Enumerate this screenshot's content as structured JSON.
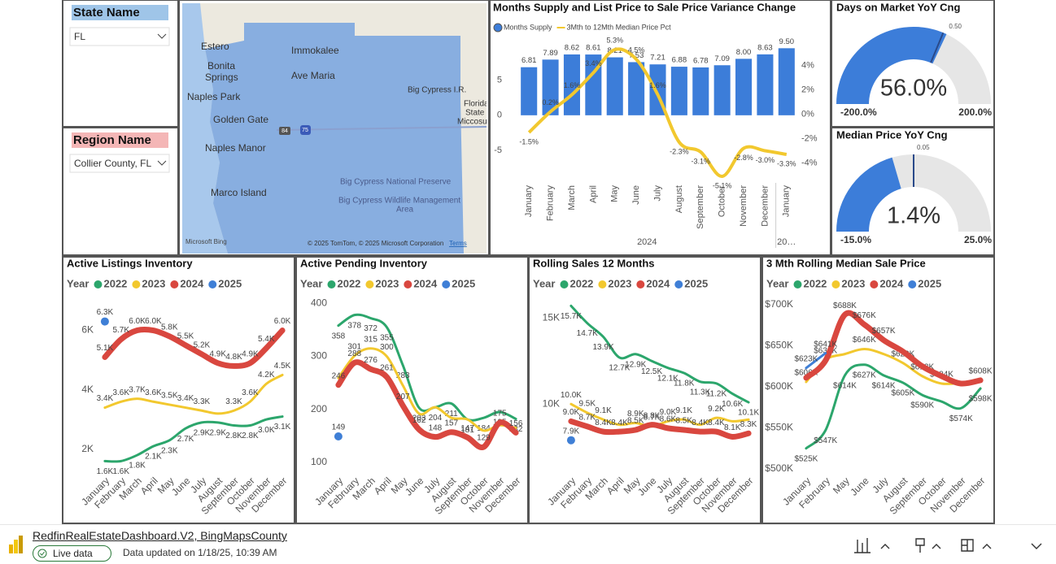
{
  "slicers": [
    {
      "title": "State Name",
      "value": "FL"
    },
    {
      "title": "Region Name",
      "value": "Collier County, FL"
    }
  ],
  "map": {
    "labels": [
      "Estero",
      "Bonita",
      "Springs",
      "Immokalee",
      "Ave Maria",
      "Naples Park",
      "Golden Gate",
      "Naples Manor",
      "Marco Island",
      "Big Cypress I.R.",
      "Florida",
      "State",
      "Miccosul",
      "Big Cypress National Preserve",
      "Big Cypress Wildlife Management",
      "Area"
    ],
    "shields": [
      "84",
      "75"
    ],
    "brand": "Microsoft Bing",
    "copyright": "© 2025 TomTom, © 2025 Microsoft Corporation",
    "terms": "Terms"
  },
  "chart_data": [
    {
      "type": "combo",
      "title": "Months Supply and List Price to Sale Price Variance Change",
      "categories": [
        "January",
        "February",
        "March",
        "April",
        "May",
        "June",
        "July",
        "August",
        "September",
        "October",
        "November",
        "December",
        "January"
      ],
      "groups": [
        "2024",
        "20…"
      ],
      "series": [
        {
          "name": "Months Supply",
          "type": "bar",
          "color": "#3c7dd9",
          "values": [
            6.81,
            7.89,
            8.62,
            8.61,
            8.21,
            7.53,
            7.21,
            6.88,
            6.78,
            7.09,
            8.0,
            8.63,
            9.5
          ],
          "value_labels": [
            "6.81",
            "7.89",
            "8.62",
            "8.61",
            "8.21",
            "7.53",
            "7.21",
            "6.88",
            "6.78",
            "7.09",
            "8.00",
            "8.63",
            "9.50"
          ]
        },
        {
          "name": "3Mth to 12Mth Median Price Pct",
          "type": "line",
          "axis": "y2",
          "color": "#f2c82e",
          "values": [
            -1.5,
            0.2,
            1.6,
            3.4,
            5.3,
            4.5,
            1.6,
            -2.3,
            -3.1,
            -5.1,
            -2.8,
            -3.0,
            -3.3
          ],
          "value_labels": [
            "-1.5%",
            "0.2%",
            "1.6%",
            "3.4%",
            "5.3%",
            "4.5%",
            "1.6%",
            "-2.3%",
            "-3.1%",
            "-5.1%",
            "-2.8%",
            "-3.0%",
            "-3.3%"
          ]
        }
      ],
      "ylim": [
        -9,
        10
      ],
      "yticks": [
        -5,
        0,
        5
      ],
      "y2lim": [
        -5.3,
        5.7
      ],
      "y2ticks": [
        {
          "value": 4,
          "label": "4%"
        },
        {
          "value": 2,
          "label": "2%"
        },
        {
          "value": 0,
          "label": "0%"
        },
        {
          "value": -2,
          "label": "-2%"
        },
        {
          "value": -4,
          "label": "-4%"
        }
      ]
    },
    {
      "type": "gauge",
      "title": "Days on Market YoY Cng",
      "values": [
        56.0
      ],
      "value_labels": [
        "56.0%"
      ],
      "ylim": [
        -200,
        200
      ],
      "yticks": [
        {
          "value": -200,
          "label": "-200.0%"
        },
        {
          "value": 200,
          "label": "200.0%"
        }
      ],
      "target": {
        "value": 50,
        "label": "0.50"
      },
      "color": "#3c7dd9"
    },
    {
      "type": "gauge",
      "title": "Median Price YoY Cng",
      "values": [
        1.4
      ],
      "value_labels": [
        "1.4%"
      ],
      "ylim": [
        -15,
        25
      ],
      "yticks": [
        {
          "value": -15,
          "label": "-15.0%"
        },
        {
          "value": 25,
          "label": "25.0%"
        }
      ],
      "target": {
        "value": 5,
        "label": "0.05"
      },
      "color": "#3c7dd9"
    },
    {
      "type": "line",
      "title": "Active Listings Inventory",
      "legend_title": "Year",
      "categories": [
        "January",
        "February",
        "March",
        "April",
        "May",
        "June",
        "July",
        "August",
        "September",
        "October",
        "November",
        "December"
      ],
      "series": [
        {
          "name": "2022",
          "color": "#2ca66c",
          "values": [
            1600,
            1600,
            1800,
            2100,
            2300,
            2700,
            2900,
            2900,
            2800,
            2800,
            3000,
            3100
          ],
          "value_labels": [
            "1.6K",
            "1.6K",
            "1.8K",
            "2.1K",
            "2.3K",
            "2.7K",
            "2.9K",
            "2.9K",
            "2.8K",
            "2.8K",
            "3.0K",
            "3.1K"
          ]
        },
        {
          "name": "2023",
          "color": "#f2c82e",
          "values": [
            3400,
            3600,
            3700,
            3600,
            3500,
            3400,
            3300,
            3200,
            3300,
            3600,
            4200,
            4500
          ],
          "value_labels": [
            "3.4K",
            "3.6K",
            "3.7K",
            "3.6K",
            "3.5K",
            "3.4K",
            "3.3K",
            null,
            "3.3K",
            "3.6K",
            "4.2K",
            "4.5K"
          ]
        },
        {
          "name": "2024",
          "color": "#d9473f",
          "values": [
            5100,
            5700,
            6000,
            6000,
            5800,
            5500,
            5200,
            4900,
            4800,
            4900,
            5400,
            6000
          ],
          "value_labels": [
            "5.1K",
            "5.7K",
            "6.0K",
            "6.0K",
            "5.8K",
            "5.5K",
            "5.2K",
            "4.9K",
            "4.8K",
            "4.9K",
            "5.4K",
            "6.0K"
          ]
        },
        {
          "name": "2025",
          "color": "#3f7fd6",
          "values": [
            6300,
            null,
            null,
            null,
            null,
            null,
            null,
            null,
            null,
            null,
            null,
            null
          ],
          "value_labels": [
            "6.3K",
            null,
            null,
            null,
            null,
            null,
            null,
            null,
            null,
            null,
            null,
            null
          ]
        }
      ],
      "ylim": [
        1200,
        7000
      ],
      "yticks": [
        {
          "value": 2000,
          "label": "2K"
        },
        {
          "value": 4000,
          "label": "4K"
        },
        {
          "value": 6000,
          "label": "6K"
        }
      ]
    },
    {
      "type": "line",
      "title": "Active Pending Inventory",
      "legend_title": "Year",
      "categories": [
        "January",
        "February",
        "March",
        "April",
        "May",
        "June",
        "July",
        "August",
        "September",
        "October",
        "November",
        "December"
      ],
      "series": [
        {
          "name": "2022",
          "color": "#2ca66c",
          "values": [
            358,
            378,
            372,
            355,
            283,
            203,
            204,
            211,
            181,
            184,
            195,
            182
          ],
          "value_labels": [
            "358",
            "378",
            "372",
            "355",
            "283",
            "203",
            "204",
            "211",
            "181",
            "184",
            "195",
            "182"
          ]
        },
        {
          "name": "2023",
          "color": "#f2c82e",
          "values": [
            259,
            301,
            315,
            300,
            245,
            192,
            204,
            184,
            181,
            160,
            170,
            165
          ],
          "value_labels": [
            null,
            "301",
            "315",
            "300",
            null,
            null,
            null,
            null,
            null,
            null,
            null,
            null
          ]
        },
        {
          "name": "2024",
          "color": "#d9473f",
          "values": [
            246,
            288,
            276,
            261,
            207,
            162,
            148,
            157,
            147,
            129,
            175,
            156
          ],
          "value_labels": [
            "246",
            "288",
            "276",
            "261",
            "207",
            "162",
            "148",
            "157",
            "147",
            "129",
            "175",
            "156"
          ]
        },
        {
          "name": "2025",
          "color": "#3f7fd6",
          "values": [
            149,
            null,
            null,
            null,
            null,
            null,
            null,
            null,
            null,
            null,
            null,
            null
          ],
          "value_labels": [
            "149",
            null,
            null,
            null,
            null,
            null,
            null,
            null,
            null,
            null,
            null,
            null
          ]
        }
      ],
      "ylim": [
        80,
        405
      ],
      "yticks": [
        100,
        200,
        300,
        400
      ]
    },
    {
      "type": "line",
      "title": "Rolling Sales 12 Months",
      "legend_title": "Year",
      "categories": [
        "January",
        "February",
        "March",
        "April",
        "May",
        "June",
        "July",
        "August",
        "September",
        "October",
        "November",
        "December"
      ],
      "series": [
        {
          "name": "2022",
          "color": "#2ca66c",
          "values": [
            15700,
            14700,
            13900,
            12700,
            12900,
            12500,
            12100,
            11800,
            11300,
            11200,
            10600,
            10100
          ],
          "value_labels": [
            "15.7K",
            "14.7K",
            "13.9K",
            "12.7K",
            "12.9K",
            "12.5K",
            "12.1K",
            "11.8K",
            "11.3K",
            "11.2K",
            "10.6K",
            "10.1K"
          ]
        },
        {
          "name": "2023",
          "color": "#f2c82e",
          "values": [
            10000,
            9500,
            9100,
            8800,
            8900,
            8700,
            9000,
            9100,
            8800,
            9200,
            9000,
            9100
          ],
          "value_labels": [
            "10.0K",
            "9.5K",
            "9.1K",
            null,
            "8.9K",
            "8.7K",
            "9.0K",
            "9.1K",
            null,
            "9.2K",
            null,
            null
          ]
        },
        {
          "name": "2024",
          "color": "#d9473f",
          "values": [
            9000,
            8700,
            8400,
            8400,
            8500,
            8800,
            8600,
            8500,
            8400,
            8400,
            8100,
            8300
          ],
          "value_labels": [
            "9.0K",
            "8.7K",
            "8.4K",
            "8.4K",
            "8.5K",
            "8.8K",
            "8.6K",
            "8.5K",
            "8.4K",
            "8.4K",
            "8.1K",
            "8.3K"
          ]
        },
        {
          "name": "2025",
          "color": "#3f7fd6",
          "values": [
            7900,
            null,
            null,
            null,
            null,
            null,
            null,
            null,
            null,
            null,
            null,
            null
          ],
          "value_labels": [
            "7.9K",
            null,
            null,
            null,
            null,
            null,
            null,
            null,
            null,
            null,
            null,
            null
          ]
        }
      ],
      "ylim": [
        6000,
        16000
      ],
      "yticks": [
        {
          "value": 10000,
          "label": "10K"
        },
        {
          "value": 15000,
          "label": "15K"
        }
      ]
    },
    {
      "type": "line",
      "title": "3 Mth Rolling Median Sale Price",
      "legend_title": "Year",
      "categories": [
        "January",
        "February",
        "May",
        "June",
        "July",
        "August",
        "September",
        "October",
        "November",
        "December"
      ],
      "series": [
        {
          "name": "2022",
          "color": "#2ca66c",
          "values": [
            525000,
            547000,
            614000,
            627000,
            614000,
            605000,
            590000,
            582000,
            574000,
            598000
          ],
          "value_labels": [
            "$525K",
            "$547K",
            "$614K",
            "$627K",
            "$614K",
            "$605K",
            "$590K",
            null,
            "$574K",
            "$598K"
          ]
        },
        {
          "name": "2023",
          "color": "#f2c82e",
          "values": [
            606000,
            633000,
            640000,
            646000,
            640000,
            629000,
            613000,
            604000,
            605000,
            608000
          ],
          "value_labels": [
            "$606K",
            "$633K",
            null,
            "$646K",
            null,
            "$629K",
            "$613K",
            "$604K",
            null,
            "$608K"
          ]
        },
        {
          "name": "2024",
          "color": "#d9473f",
          "values": [
            611000,
            632000,
            688000,
            676000,
            657000,
            643000,
            625000,
            613000,
            604000,
            608000
          ],
          "value_labels": [
            null,
            null,
            "$688K",
            "$676K",
            "$657K",
            null,
            null,
            null,
            null,
            null
          ]
        },
        {
          "name": "2025",
          "color": "#3f7fd6",
          "values": [
            623000,
            641000,
            null,
            null,
            null,
            null,
            null,
            null,
            null,
            null
          ],
          "value_labels": [
            "$623K",
            "$641K",
            null,
            null,
            null,
            null,
            null,
            null,
            null,
            null
          ]
        }
      ],
      "ylim": [
        495000,
        705000
      ],
      "yticks": [
        {
          "value": 500000,
          "label": "$500K"
        },
        {
          "value": 550000,
          "label": "$550K"
        },
        {
          "value": 600000,
          "label": "$600K"
        },
        {
          "value": 650000,
          "label": "$650K"
        },
        {
          "value": 700000,
          "label": "$700K"
        }
      ]
    }
  ],
  "footer": {
    "report": "RedfinRealEstateDashboard.V2, BingMapsCounty",
    "live": "Live data",
    "updated": "Data updated on 1/18/25, 10:39 AM"
  }
}
